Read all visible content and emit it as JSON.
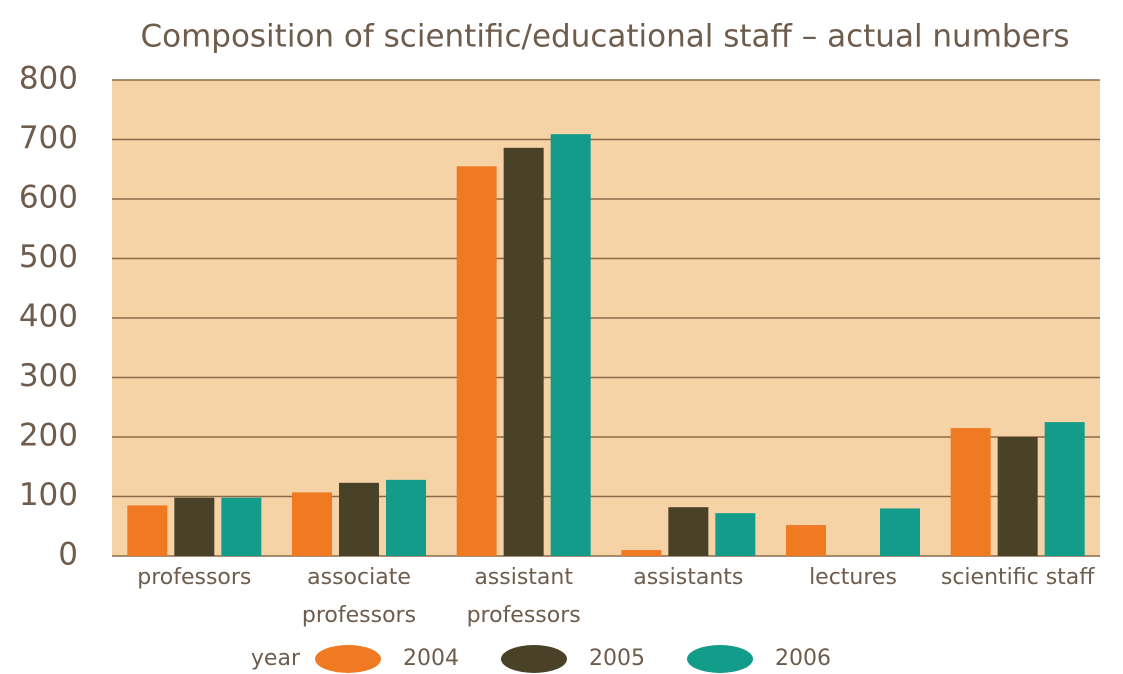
{
  "chart_data": {
    "type": "bar",
    "title": "Composition of scientific/educational staff – actual numbers",
    "categories": [
      [
        "professors"
      ],
      [
        "associate",
        "professors"
      ],
      [
        "assistant",
        "professors"
      ],
      [
        "assistants"
      ],
      [
        "lectures"
      ],
      [
        "scientific staff"
      ]
    ],
    "series": [
      {
        "name": "2004",
        "color": "#ef7a22",
        "values": [
          85,
          107,
          655,
          10,
          52,
          215
        ]
      },
      {
        "name": "2005",
        "color": "#4a4228",
        "values": [
          98,
          123,
          686,
          82,
          null,
          200
        ]
      },
      {
        "name": "2006",
        "color": "#139c8a",
        "values": [
          98,
          128,
          709,
          72,
          80,
          225
        ]
      }
    ],
    "legend_title": "year",
    "ylim": [
      0,
      800
    ],
    "yticks": [
      0,
      100,
      200,
      300,
      400,
      500,
      600,
      700,
      800
    ],
    "grid": true,
    "legend_position": "bottom"
  }
}
